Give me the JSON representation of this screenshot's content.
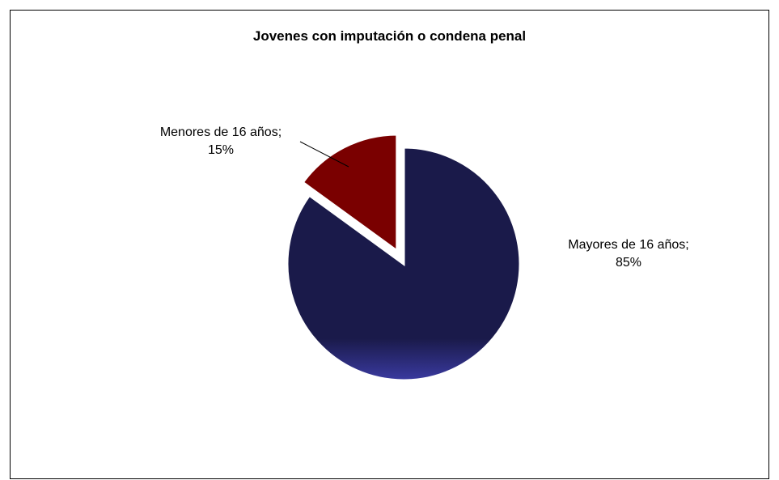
{
  "chart_data": {
    "type": "pie",
    "title": "Jovenes con imputación o condena penal",
    "slices": [
      {
        "label": "Mayores de 16 años",
        "value": 85,
        "value_label": "85%",
        "color": "#1a1a4a",
        "exploded": false
      },
      {
        "label": "Menores de 16 años",
        "value": 15,
        "value_label": "15%",
        "color": "#7a0000",
        "exploded": true
      }
    ],
    "data_labels": "outside with leader line",
    "legend": "none"
  }
}
